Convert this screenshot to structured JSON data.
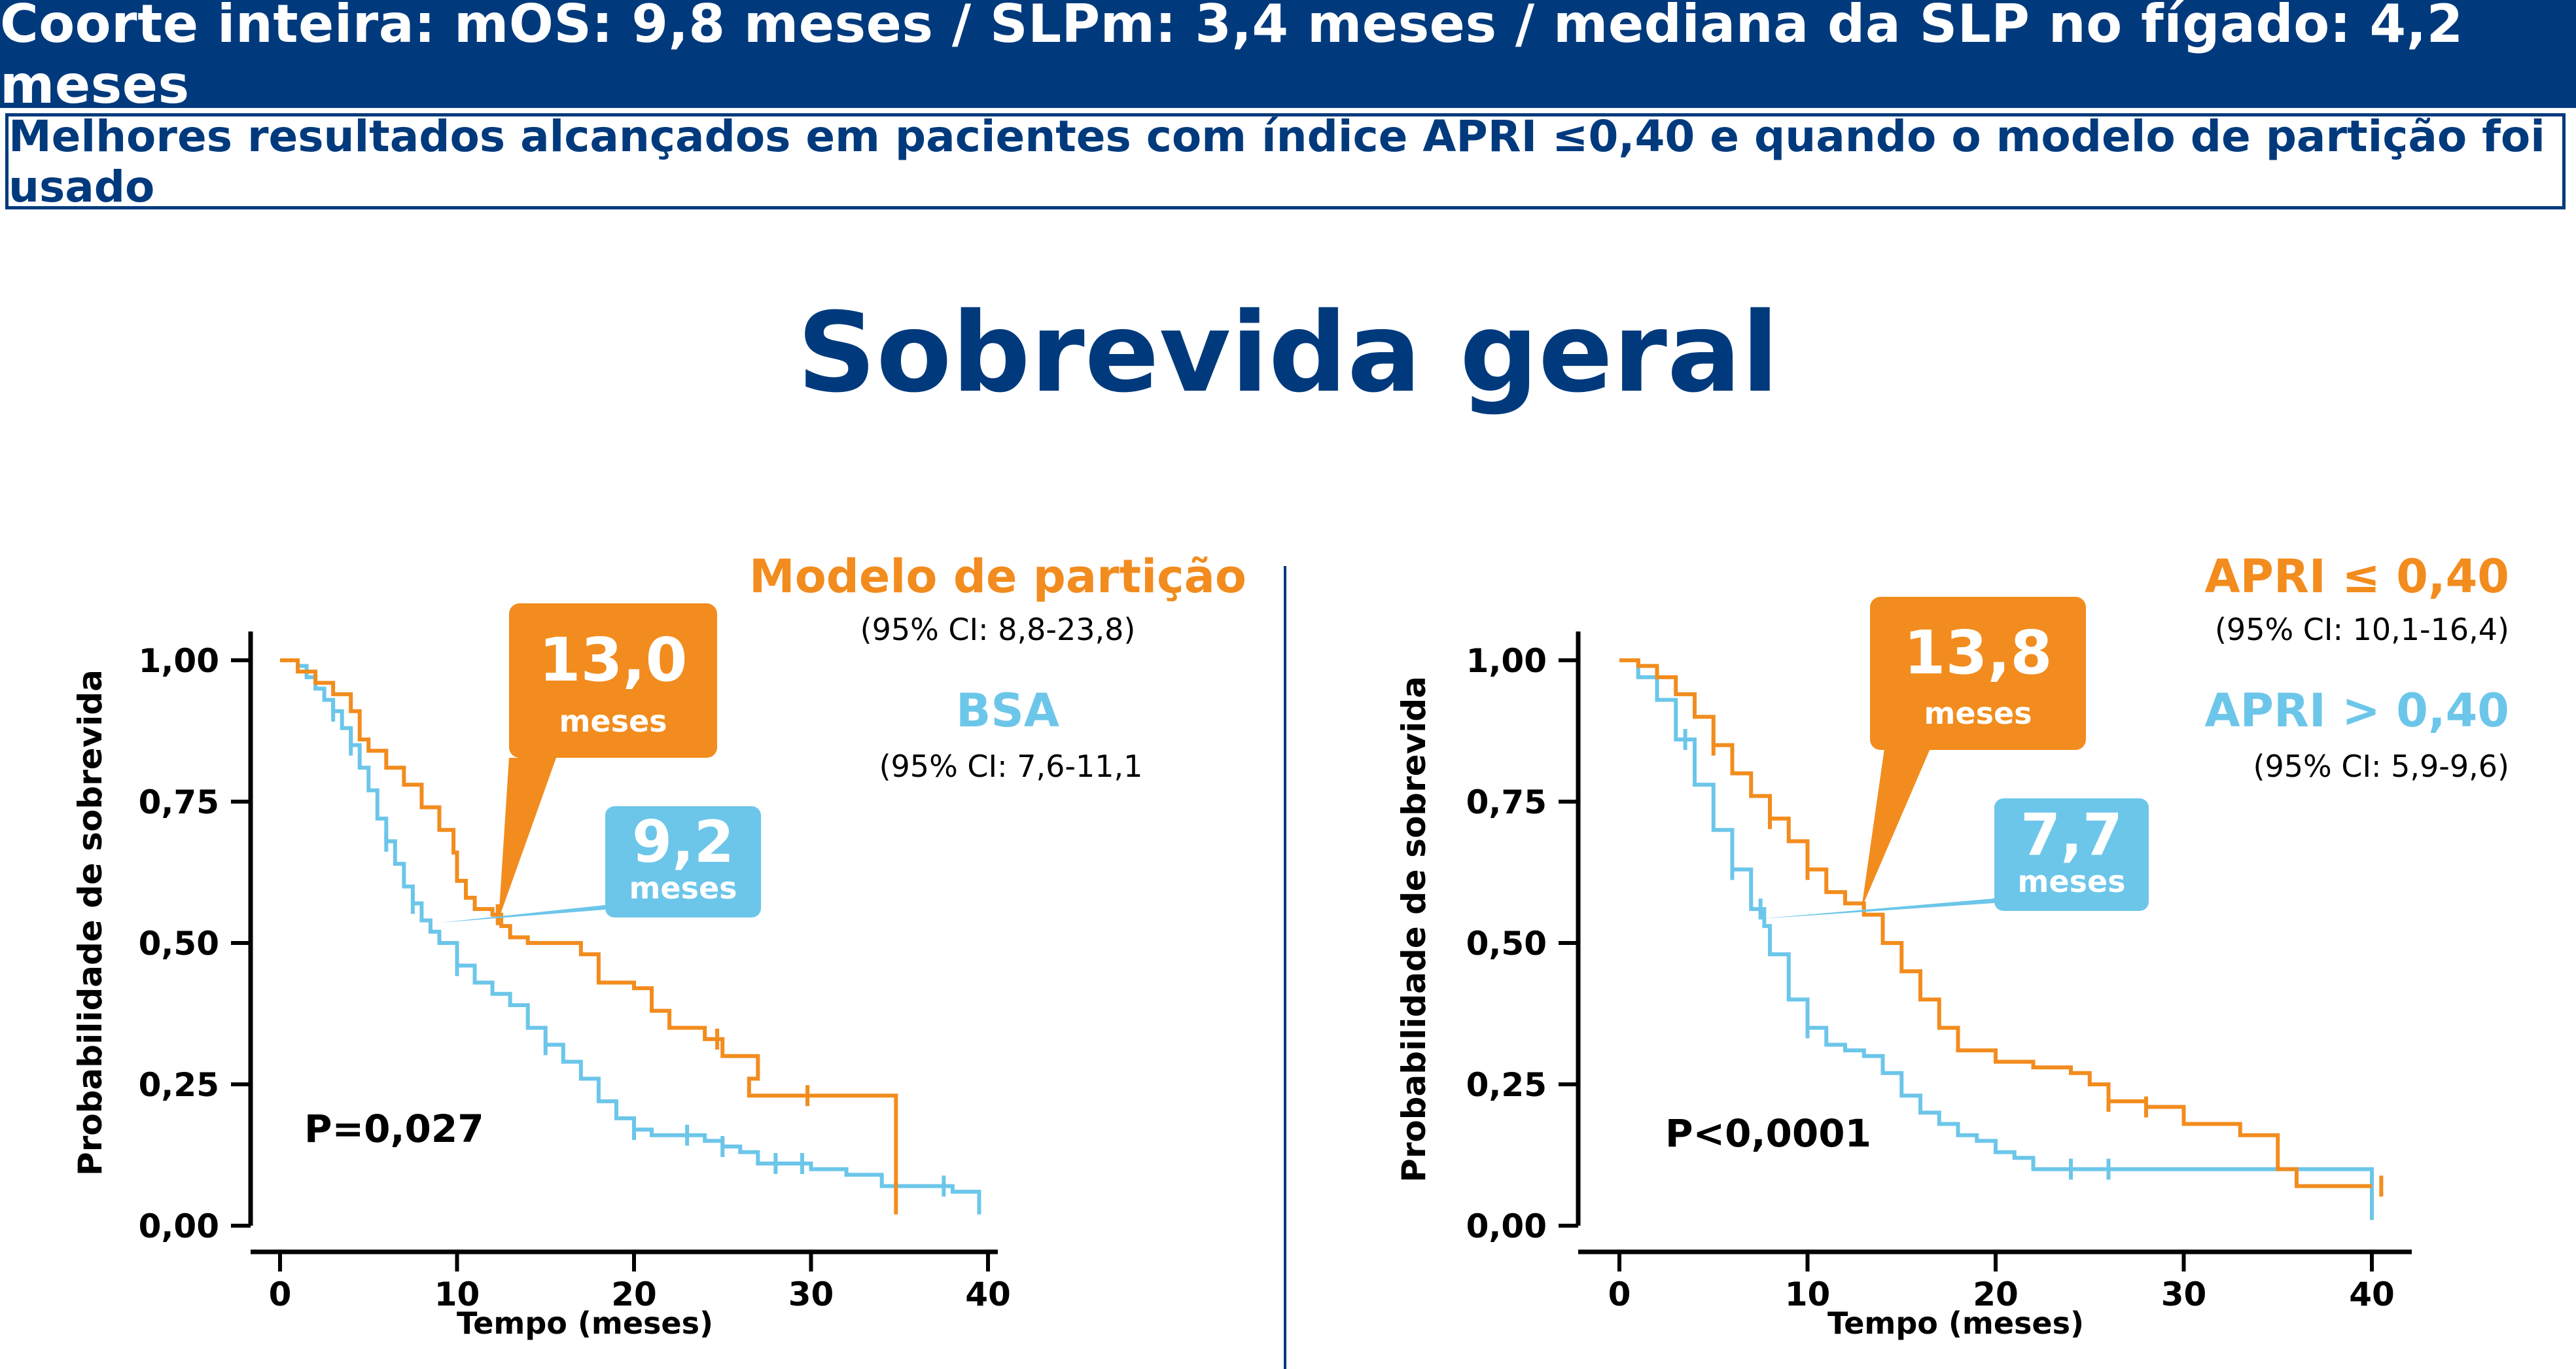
{
  "header": {
    "banner": "Coorte inteira: mOS: 9,8 meses / SLPm: 3,4 meses / mediana da SLP no fígado: 4,2 meses",
    "subbanner": "Melhores resultados alcançados em pacientes com índice APRI ≤0,40 e quando o modelo de partição foi usado"
  },
  "page_title": "Sobrevida geral",
  "colors": {
    "orange": "#f28c1e",
    "blue": "#6cc6ea",
    "navy": "#003a7d",
    "black": "#000000"
  },
  "chart_data": [
    {
      "type": "line",
      "subtype": "kaplan-meier",
      "title": "",
      "xlabel": "Tempo (meses)",
      "ylabel": "Probabilidade de sobrevida",
      "xlim": [
        0,
        40
      ],
      "ylim": [
        0,
        1
      ],
      "xticks": [
        "0",
        "10",
        "20",
        "30",
        "40"
      ],
      "yticks": [
        "0,00",
        "0,25",
        "0,50",
        "0,75",
        "1,00"
      ],
      "p_value": "P=0,027",
      "series": [
        {
          "name": "Modelo de partição",
          "ci": "(95% CI: 8,8-23,8)",
          "color": "orange",
          "median_value": "13,0",
          "median_unit": "meses",
          "points": [
            [
              0,
              1.0
            ],
            [
              1,
              0.98
            ],
            [
              2,
              0.96
            ],
            [
              3,
              0.94
            ],
            [
              4,
              0.91
            ],
            [
              4.5,
              0.86
            ],
            [
              5,
              0.84
            ],
            [
              6,
              0.81
            ],
            [
              7,
              0.78
            ],
            [
              8,
              0.74
            ],
            [
              9,
              0.7
            ],
            [
              9.8,
              0.66
            ],
            [
              10,
              0.61
            ],
            [
              10.5,
              0.58
            ],
            [
              11,
              0.56
            ],
            [
              12,
              0.55
            ],
            [
              12.5,
              0.53
            ],
            [
              13,
              0.51
            ],
            [
              14,
              0.5
            ],
            [
              17,
              0.48
            ],
            [
              18,
              0.43
            ],
            [
              20,
              0.42
            ],
            [
              21,
              0.38
            ],
            [
              22,
              0.35
            ],
            [
              24,
              0.33
            ],
            [
              25,
              0.3
            ],
            [
              27,
              0.26
            ],
            [
              26.5,
              0.23
            ],
            [
              34,
              0.23
            ],
            [
              34.8,
              0.02
            ]
          ],
          "censor_x": [
            12.3,
            24.7,
            29.8
          ]
        },
        {
          "name": "BSA",
          "ci": "(95% CI: 7,6-11,1",
          "color": "blue",
          "median_value": "9,2",
          "median_unit": "meses",
          "points": [
            [
              0,
              1.0
            ],
            [
              0.5,
              1.0
            ],
            [
              1,
              0.99
            ],
            [
              1.5,
              0.97
            ],
            [
              2,
              0.95
            ],
            [
              2.5,
              0.93
            ],
            [
              3,
              0.91
            ],
            [
              3.5,
              0.88
            ],
            [
              4,
              0.85
            ],
            [
              4.5,
              0.81
            ],
            [
              5,
              0.77
            ],
            [
              5.5,
              0.72
            ],
            [
              6,
              0.68
            ],
            [
              6.5,
              0.64
            ],
            [
              7,
              0.6
            ],
            [
              7.5,
              0.57
            ],
            [
              8,
              0.54
            ],
            [
              8.5,
              0.52
            ],
            [
              9,
              0.5
            ],
            [
              10,
              0.46
            ],
            [
              11,
              0.43
            ],
            [
              12,
              0.41
            ],
            [
              13,
              0.39
            ],
            [
              14,
              0.35
            ],
            [
              15,
              0.32
            ],
            [
              16,
              0.29
            ],
            [
              17,
              0.26
            ],
            [
              18,
              0.22
            ],
            [
              19,
              0.19
            ],
            [
              20,
              0.17
            ],
            [
              21,
              0.16
            ],
            [
              22,
              0.16
            ],
            [
              24,
              0.15
            ],
            [
              25,
              0.14
            ],
            [
              26,
              0.13
            ],
            [
              27,
              0.11
            ],
            [
              28,
              0.11
            ],
            [
              30,
              0.1
            ],
            [
              32,
              0.09
            ],
            [
              34,
              0.07
            ],
            [
              36,
              0.07
            ],
            [
              38,
              0.06
            ],
            [
              39.5,
              0.06
            ],
            [
              39.5,
              0.02
            ]
          ],
          "censor_x": [
            3.0,
            4.0,
            6.0,
            7.5,
            10.0,
            15.0,
            20.0,
            23.0,
            25.0,
            28.0,
            29.5,
            37.5
          ]
        }
      ]
    },
    {
      "type": "line",
      "subtype": "kaplan-meier",
      "title": "",
      "xlabel": "Tempo (meses)",
      "ylabel": "Probabilidade de sobrevida",
      "xlim": [
        0,
        40
      ],
      "ylim": [
        0,
        1
      ],
      "xticks": [
        "0",
        "10",
        "20",
        "30",
        "40"
      ],
      "yticks": [
        "0,00",
        "0,25",
        "0,50",
        "0,75",
        "1,00"
      ],
      "p_value": "P<0,0001",
      "series": [
        {
          "name": "APRI ≤ 0,40",
          "ci": "(95% CI: 10,1-16,4)",
          "color": "orange",
          "median_value": "13,8",
          "median_unit": "meses",
          "points": [
            [
              0,
              1.0
            ],
            [
              1,
              0.99
            ],
            [
              2,
              0.97
            ],
            [
              3,
              0.94
            ],
            [
              4,
              0.9
            ],
            [
              5,
              0.85
            ],
            [
              6,
              0.8
            ],
            [
              7,
              0.76
            ],
            [
              8,
              0.72
            ],
            [
              9,
              0.68
            ],
            [
              10,
              0.63
            ],
            [
              11,
              0.59
            ],
            [
              12,
              0.57
            ],
            [
              13,
              0.55
            ],
            [
              14,
              0.5
            ],
            [
              15,
              0.45
            ],
            [
              16,
              0.4
            ],
            [
              17,
              0.35
            ],
            [
              18,
              0.31
            ],
            [
              20,
              0.29
            ],
            [
              22,
              0.28
            ],
            [
              24,
              0.27
            ],
            [
              25,
              0.25
            ],
            [
              26,
              0.22
            ],
            [
              28,
              0.21
            ],
            [
              30,
              0.18
            ],
            [
              33,
              0.16
            ],
            [
              35,
              0.1
            ],
            [
              36,
              0.07
            ],
            [
              40,
              0.07
            ]
          ],
          "censor_x": [
            5.0,
            8.0,
            10.0,
            26.0,
            28.0,
            40.5
          ]
        },
        {
          "name": "APRI > 0,40",
          "ci": "(95% CI: 5,9-9,6)",
          "color": "blue",
          "median_value": "7,7",
          "median_unit": "meses",
          "points": [
            [
              0,
              1.0
            ],
            [
              1,
              0.97
            ],
            [
              2,
              0.93
            ],
            [
              3,
              0.86
            ],
            [
              4,
              0.78
            ],
            [
              5,
              0.7
            ],
            [
              6,
              0.63
            ],
            [
              7,
              0.56
            ],
            [
              7.7,
              0.53
            ],
            [
              8,
              0.48
            ],
            [
              9,
              0.4
            ],
            [
              10,
              0.35
            ],
            [
              11,
              0.32
            ],
            [
              12,
              0.31
            ],
            [
              13,
              0.3
            ],
            [
              14,
              0.27
            ],
            [
              15,
              0.23
            ],
            [
              16,
              0.2
            ],
            [
              17,
              0.18
            ],
            [
              18,
              0.16
            ],
            [
              19,
              0.15
            ],
            [
              20,
              0.13
            ],
            [
              21,
              0.12
            ],
            [
              22,
              0.1
            ],
            [
              39,
              0.1
            ],
            [
              40,
              0.1
            ],
            [
              40,
              0.01
            ]
          ],
          "censor_x": [
            3.5,
            6.0,
            7.5,
            10.0,
            24.0,
            26.0
          ]
        }
      ]
    }
  ]
}
